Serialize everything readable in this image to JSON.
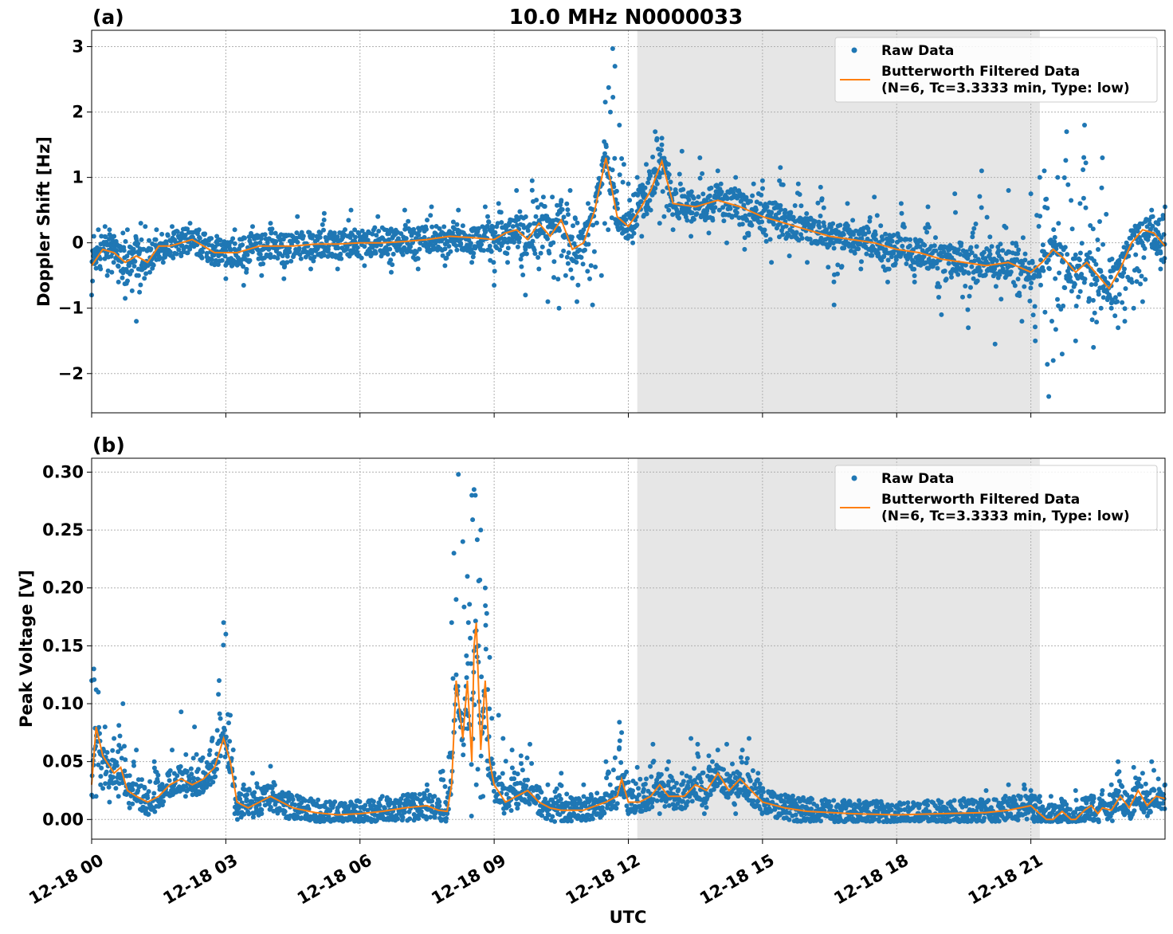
{
  "figure": {
    "title": "10.0 MHz N0000033",
    "xlabel": "UTC",
    "x_tick_labels": [
      "12-18 00",
      "12-18 03",
      "12-18 06",
      "12-18 09",
      "12-18 12",
      "12-18 15",
      "12-18 18",
      "12-18 21"
    ],
    "shaded_region_utc_hours": [
      12.2,
      21.2
    ],
    "colors": {
      "raw": "#1f77b4",
      "filtered": "#ff7f0e",
      "shade": "#e6e6e6",
      "grid": "#b0b0b0"
    }
  },
  "legend": {
    "raw_label": "Raw Data",
    "filtered_label_line1": "Butterworth Filtered Data",
    "filtered_label_line2": "(N=6, Tc=3.3333 min, Type: low)",
    "placement": "top-right"
  },
  "chart_data": [
    {
      "type": "scatter",
      "panel_label": "(a)",
      "ylabel": "Doppler Shift [Hz]",
      "xlim_utc_hours": [
        0,
        24
      ],
      "ylim": [
        -2.6,
        3.25
      ],
      "y_ticks": [
        -2,
        -1,
        0,
        1,
        2,
        3
      ],
      "y_tick_labels": [
        "−2",
        "−1",
        "0",
        "1",
        "2",
        "3"
      ],
      "grid": true,
      "series": [
        {
          "name": "Butterworth Filtered Data",
          "kind": "line",
          "x_utc_hours": [
            0,
            0.25,
            0.5,
            0.75,
            1.0,
            1.25,
            1.5,
            1.75,
            2.0,
            2.25,
            2.5,
            2.75,
            3.0,
            3.25,
            3.5,
            3.75,
            4.0,
            4.5,
            5.0,
            5.5,
            6.0,
            6.5,
            7.0,
            7.5,
            8.0,
            8.5,
            9.0,
            9.25,
            9.5,
            9.75,
            10.0,
            10.25,
            10.5,
            10.75,
            11.0,
            11.25,
            11.5,
            11.75,
            12.0,
            12.25,
            12.5,
            12.75,
            13.0,
            13.5,
            14.0,
            14.5,
            15.0,
            15.5,
            16.0,
            16.5,
            17.0,
            17.5,
            18.0,
            18.5,
            19.0,
            19.5,
            20.0,
            20.5,
            21.0,
            21.25,
            21.5,
            21.75,
            22.0,
            22.25,
            22.5,
            22.75,
            23.0,
            23.25,
            23.5,
            23.75,
            24.0
          ],
          "y": [
            -0.35,
            -0.1,
            -0.15,
            -0.3,
            -0.2,
            -0.3,
            -0.05,
            -0.05,
            0.0,
            0.05,
            -0.05,
            -0.15,
            -0.15,
            -0.15,
            -0.1,
            -0.05,
            -0.05,
            -0.05,
            -0.02,
            -0.02,
            0.0,
            0.0,
            0.02,
            0.05,
            0.1,
            0.08,
            0.05,
            0.15,
            0.2,
            0.05,
            0.3,
            0.1,
            0.35,
            -0.1,
            0.0,
            0.5,
            1.3,
            0.4,
            0.25,
            0.5,
            0.8,
            1.25,
            0.6,
            0.55,
            0.65,
            0.55,
            0.4,
            0.3,
            0.2,
            0.1,
            0.05,
            0.0,
            -0.1,
            -0.15,
            -0.25,
            -0.3,
            -0.35,
            -0.3,
            -0.45,
            -0.3,
            -0.1,
            -0.25,
            -0.45,
            -0.3,
            -0.5,
            -0.7,
            -0.4,
            0.0,
            0.2,
            0.15,
            -0.05
          ]
        },
        {
          "name": "Raw Data",
          "kind": "points",
          "x_utc_hours": [
            0.0,
            0.05,
            0.1,
            0.15,
            0.2,
            0.3,
            0.35,
            0.4,
            0.45,
            0.5,
            0.6,
            0.7,
            0.75,
            0.8,
            0.9,
            1.0,
            1.05,
            1.1,
            1.15,
            1.2,
            1.3,
            1.45,
            1.6,
            1.8,
            2.0,
            2.2,
            2.4,
            2.6,
            2.8,
            3.0,
            3.2,
            3.4,
            3.6,
            3.8,
            4.0,
            4.3,
            4.6,
            4.9,
            5.2,
            5.5,
            5.8,
            6.1,
            6.4,
            6.7,
            7.0,
            7.3,
            7.6,
            7.9,
            8.2,
            8.5,
            8.8,
            9.0,
            9.1,
            9.3,
            9.5,
            9.7,
            9.85,
            10.0,
            10.1,
            10.2,
            10.3,
            10.45,
            10.5,
            10.6,
            10.7,
            10.85,
            11.0,
            11.1,
            11.2,
            11.3,
            11.4,
            11.5,
            11.55,
            11.6,
            11.65,
            11.7,
            11.75,
            11.8,
            11.85,
            11.9,
            12.0,
            12.1,
            12.2,
            12.3,
            12.4,
            12.5,
            12.6,
            12.7,
            12.75,
            12.8,
            12.9,
            13.0,
            13.2,
            13.4,
            13.6,
            13.8,
            14.0,
            14.2,
            14.4,
            14.6,
            14.8,
            15.0,
            15.2,
            15.4,
            15.6,
            15.8,
            16.0,
            16.3,
            16.6,
            16.9,
            17.2,
            17.5,
            17.8,
            18.1,
            18.4,
            18.7,
            19.0,
            19.3,
            19.6,
            19.9,
            20.2,
            20.5,
            20.8,
            21.0,
            21.1,
            21.2,
            21.3,
            21.4,
            21.5,
            21.6,
            21.7,
            21.8,
            22.0,
            22.1,
            22.2,
            22.4,
            22.6,
            22.8,
            22.95,
            23.1,
            23.3,
            23.5,
            23.7,
            23.9,
            24.0
          ],
          "y": [
            -0.8,
            0.1,
            -0.3,
            0.2,
            -0.4,
            0.25,
            -0.5,
            0.2,
            -0.45,
            0.1,
            -0.6,
            0.15,
            -0.85,
            0.2,
            -0.3,
            -1.2,
            -0.5,
            0.3,
            -0.1,
            0.25,
            -0.45,
            0.2,
            -0.3,
            0.25,
            -0.2,
            0.3,
            0.2,
            -0.25,
            0.1,
            -0.55,
            0.2,
            -0.65,
            0.25,
            -0.5,
            0.3,
            -0.55,
            0.4,
            -0.4,
            0.45,
            -0.4,
            0.5,
            -0.35,
            0.4,
            -0.45,
            0.5,
            -0.4,
            0.55,
            -0.35,
            0.5,
            -0.3,
            0.55,
            -0.65,
            0.6,
            -0.3,
            0.8,
            -0.8,
            0.95,
            -0.4,
            0.7,
            -0.9,
            0.7,
            -1.0,
            0.65,
            -0.5,
            0.8,
            -0.9,
            0.2,
            0.6,
            -0.95,
            0.85,
            -0.5,
            1.5,
            0.2,
            2.0,
            2.97,
            2.7,
            0.6,
            1.8,
            0.3,
            1.2,
            0.9,
            0.0,
            1.0,
            0.1,
            1.2,
            0.5,
            1.7,
            0.3,
            1.6,
            0.4,
            1.2,
            0.2,
            1.4,
            0.1,
            1.3,
            0.15,
            1.1,
            0.0,
            1.0,
            -0.1,
            0.9,
            0.95,
            -0.3,
            1.15,
            -0.2,
            0.9,
            -0.3,
            0.85,
            -0.95,
            0.6,
            -0.4,
            0.7,
            -0.6,
            0.6,
            -0.6,
            0.55,
            -1.1,
            0.75,
            -1.3,
            1.1,
            -1.55,
            0.8,
            -1.2,
            0.75,
            -1.5,
            1.0,
            1.1,
            -2.35,
            -1.8,
            1.0,
            -1.7,
            1.7,
            -1.5,
            0.6,
            1.8,
            -1.6,
            1.3,
            -1.0,
            -1.3,
            -1.2,
            -1.0,
            -0.9,
            0.5,
            -0.4,
            0.55,
            0.4,
            -0.65
          ]
        }
      ]
    },
    {
      "type": "scatter",
      "panel_label": "(b)",
      "ylabel": "Peak Voltage [V]",
      "xlim_utc_hours": [
        0,
        24
      ],
      "ylim": [
        -0.017,
        0.312
      ],
      "y_ticks": [
        0.0,
        0.05,
        0.1,
        0.15,
        0.2,
        0.25,
        0.3
      ],
      "y_tick_labels": [
        "0.00",
        "0.05",
        "0.10",
        "0.15",
        "0.20",
        "0.25",
        "0.30"
      ],
      "grid": true,
      "series": [
        {
          "name": "Butterworth Filtered Data",
          "kind": "line",
          "x_utc_hours": [
            0,
            0.1,
            0.25,
            0.5,
            0.65,
            0.8,
            1.0,
            1.25,
            1.5,
            1.75,
            2.0,
            2.25,
            2.5,
            2.75,
            2.95,
            3.1,
            3.25,
            3.5,
            3.75,
            4.0,
            4.5,
            5.0,
            5.5,
            6.0,
            6.5,
            7.0,
            7.5,
            7.75,
            7.95,
            8.05,
            8.15,
            8.3,
            8.4,
            8.5,
            8.55,
            8.6,
            8.7,
            8.8,
            8.9,
            9.0,
            9.25,
            9.5,
            9.75,
            10.0,
            10.25,
            10.5,
            11.0,
            11.5,
            11.75,
            11.85,
            12.0,
            12.25,
            12.5,
            12.7,
            12.9,
            13.25,
            13.5,
            13.75,
            14.0,
            14.25,
            14.5,
            14.75,
            15.0,
            15.5,
            16.0,
            17.0,
            18.0,
            19.0,
            20.0,
            20.5,
            21.0,
            21.2,
            21.35,
            21.5,
            21.7,
            21.9,
            22.0,
            22.2,
            22.35,
            22.5,
            22.6,
            22.8,
            23.0,
            23.2,
            23.4,
            23.6,
            23.8,
            24.0
          ],
          "y": [
            0.03,
            0.08,
            0.055,
            0.04,
            0.045,
            0.025,
            0.02,
            0.015,
            0.02,
            0.03,
            0.035,
            0.03,
            0.035,
            0.045,
            0.07,
            0.05,
            0.015,
            0.01,
            0.015,
            0.02,
            0.01,
            0.006,
            0.004,
            0.005,
            0.007,
            0.01,
            0.012,
            0.008,
            0.007,
            0.03,
            0.12,
            0.07,
            0.12,
            0.05,
            0.15,
            0.17,
            0.06,
            0.12,
            0.05,
            0.03,
            0.015,
            0.02,
            0.025,
            0.015,
            0.01,
            0.008,
            0.008,
            0.015,
            0.02,
            0.035,
            0.015,
            0.015,
            0.02,
            0.03,
            0.02,
            0.02,
            0.03,
            0.025,
            0.04,
            0.025,
            0.035,
            0.025,
            0.015,
            0.01,
            0.007,
            0.005,
            0.004,
            0.005,
            0.006,
            0.008,
            0.012,
            0.005,
            0.0,
            0.0,
            0.007,
            0.0,
            0.0,
            0.008,
            0.012,
            0.005,
            0.01,
            0.008,
            0.02,
            0.01,
            0.025,
            0.012,
            0.02,
            0.018
          ]
        },
        {
          "name": "Raw Data",
          "kind": "points",
          "x_utc_hours": [
            0.0,
            0.05,
            0.1,
            0.15,
            0.2,
            0.3,
            0.4,
            0.5,
            0.6,
            0.7,
            0.85,
            1.0,
            1.2,
            1.4,
            1.6,
            1.8,
            2.0,
            2.1,
            2.3,
            2.5,
            2.7,
            2.85,
            2.95,
            3.0,
            3.1,
            3.2,
            3.4,
            3.6,
            3.8,
            4.0,
            4.3,
            4.6,
            5.0,
            5.5,
            6.0,
            6.5,
            7.0,
            7.5,
            7.8,
            7.95,
            8.05,
            8.1,
            8.15,
            8.2,
            8.3,
            8.4,
            8.5,
            8.55,
            8.6,
            8.65,
            8.7,
            8.75,
            8.8,
            8.9,
            9.0,
            9.1,
            9.2,
            9.4,
            9.6,
            9.8,
            10.0,
            10.2,
            10.5,
            11.0,
            11.5,
            11.8,
            11.85,
            12.0,
            12.2,
            12.4,
            12.55,
            12.7,
            12.9,
            13.2,
            13.4,
            13.55,
            13.7,
            13.8,
            14.0,
            14.2,
            14.4,
            14.55,
            14.7,
            14.9,
            15.2,
            15.5,
            16.0,
            16.5,
            17.0,
            17.5,
            18.0,
            18.5,
            19.0,
            19.5,
            20.0,
            20.5,
            20.85,
            21.0,
            21.1,
            21.2,
            21.35,
            21.45,
            21.6,
            21.7,
            21.85,
            22.0,
            22.2,
            22.4,
            22.6,
            22.8,
            22.95,
            23.1,
            23.3,
            23.5,
            23.7,
            23.85,
            24.0
          ],
          "y": [
            0.12,
            0.13,
            0.02,
            0.11,
            0.03,
            0.08,
            0.015,
            0.07,
            0.02,
            0.1,
            0.01,
            0.06,
            0.015,
            0.05,
            0.02,
            0.06,
            0.093,
            0.02,
            0.08,
            0.025,
            0.07,
            0.12,
            0.17,
            0.16,
            0.09,
            0.005,
            0.03,
            0.04,
            0.005,
            0.046,
            0.005,
            0.02,
            0.003,
            0.01,
            0.003,
            0.02,
            0.01,
            0.03,
            0.005,
            0.005,
            0.17,
            0.23,
            0.19,
            0.298,
            0.24,
            0.21,
            0.28,
            0.285,
            0.03,
            0.15,
            0.25,
            0.02,
            0.2,
            0.14,
            0.04,
            0.09,
            0.07,
            0.06,
            0.055,
            0.065,
            0.005,
            0.03,
            0.04,
            0.03,
            0.05,
            0.084,
            0.075,
            0.005,
            0.045,
            0.035,
            0.065,
            0.005,
            0.05,
            0.04,
            0.07,
            0.065,
            0.005,
            0.055,
            0.06,
            0.065,
            0.005,
            0.06,
            0.07,
            0.04,
            0.02,
            0.015,
            0.015,
            0.01,
            0.012,
            0.006,
            0.012,
            0.01,
            0.015,
            0.018,
            0.025,
            0.03,
            0.03,
            0.025,
            -0.001,
            0.02,
            0.0,
            0.02,
            -0.002,
            0.015,
            0.0,
            0.025,
            -0.001,
            0.02,
            0.025,
            0.03,
            0.05,
            0.005,
            0.045,
            0.04,
            0.05,
            0.035,
            0.03
          ]
        }
      ]
    }
  ]
}
